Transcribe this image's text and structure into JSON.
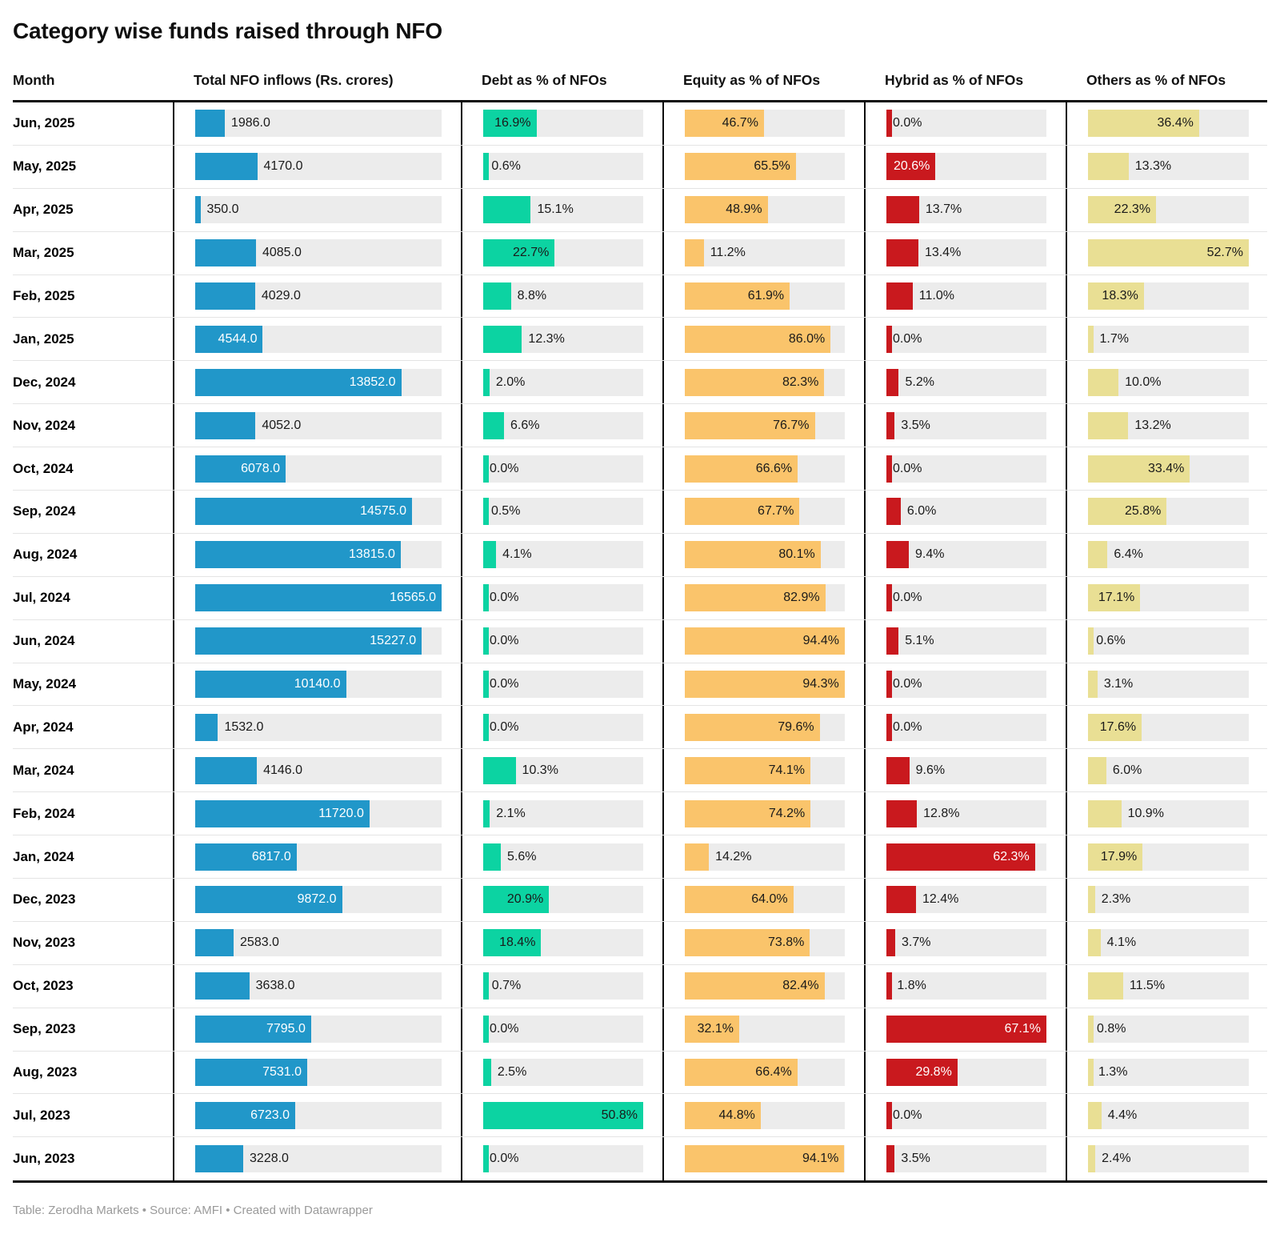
{
  "title": "Category wise funds raised through NFO",
  "footer": "Table: Zerodha Markets • Source: AMFI • Created with Datawrapper",
  "colors": {
    "track": "#ececec",
    "row_divider": "#e4e4e4",
    "table_border": "#0d0d0d",
    "outside_label_text": "#1a1a1a",
    "footer_text": "#9a9a9a"
  },
  "columns": [
    {
      "key": "month",
      "label": "Month"
    },
    {
      "key": "total",
      "label": "Total NFO inflows (Rs. crores)",
      "bar_color": "#2197c9",
      "inside_label_color": "#ffffff",
      "scale_max": 16565.0,
      "unit": ""
    },
    {
      "key": "debt",
      "label": "Debt as % of NFOs",
      "bar_color": "#0cd3a2",
      "inside_label_color": "#1a1a1a",
      "scale_max": 50.8,
      "unit": "%"
    },
    {
      "key": "equity",
      "label": "Equity as % of NFOs",
      "bar_color": "#fac46b",
      "inside_label_color": "#1a1a1a",
      "scale_max": 94.4,
      "unit": "%"
    },
    {
      "key": "hybrid",
      "label": "Hybrid as % of NFOs",
      "bar_color": "#c9191e",
      "inside_label_color": "#ffffff",
      "scale_max": 67.1,
      "unit": "%"
    },
    {
      "key": "others",
      "label": "Others as % of NFOs",
      "bar_color": "#e9df94",
      "inside_label_color": "#1a1a1a",
      "scale_max": 52.7,
      "unit": "%"
    }
  ],
  "chart_data": {
    "type": "table",
    "title": "Category wise funds raised through NFO",
    "months": [
      "Jun, 2025",
      "May, 2025",
      "Apr, 2025",
      "Mar, 2025",
      "Feb, 2025",
      "Jan, 2025",
      "Dec, 2024",
      "Nov, 2024",
      "Oct, 2024",
      "Sep, 2024",
      "Aug, 2024",
      "Jul, 2024",
      "Jun, 2024",
      "May, 2024",
      "Apr, 2024",
      "Mar, 2024",
      "Feb, 2024",
      "Jan, 2024",
      "Dec, 2023",
      "Nov, 2023",
      "Oct, 2023",
      "Sep, 2023",
      "Aug, 2023",
      "Jul, 2023",
      "Jun, 2023"
    ],
    "series": {
      "total": [
        1986.0,
        4170.0,
        350.0,
        4085.0,
        4029.0,
        4544.0,
        13852.0,
        4052.0,
        6078.0,
        14575.0,
        13815.0,
        16565.0,
        15227.0,
        10140.0,
        1532.0,
        4146.0,
        11720.0,
        6817.0,
        9872.0,
        2583.0,
        3638.0,
        7795.0,
        7531.0,
        6723.0,
        3228.0
      ],
      "debt": [
        16.9,
        0.6,
        15.1,
        22.7,
        8.8,
        12.3,
        2.0,
        6.6,
        0.0,
        0.5,
        4.1,
        0.0,
        0.0,
        0.0,
        0.0,
        10.3,
        2.1,
        5.6,
        20.9,
        18.4,
        0.7,
        0.0,
        2.5,
        50.8,
        0.0
      ],
      "equity": [
        46.7,
        65.5,
        48.9,
        11.2,
        61.9,
        86.0,
        82.3,
        76.7,
        66.6,
        67.7,
        80.1,
        82.9,
        94.4,
        94.3,
        79.6,
        74.1,
        74.2,
        14.2,
        64.0,
        73.8,
        82.4,
        32.1,
        66.4,
        44.8,
        94.1
      ],
      "hybrid": [
        0.0,
        20.6,
        13.7,
        13.4,
        11.0,
        0.0,
        5.2,
        3.5,
        0.0,
        6.0,
        9.4,
        0.0,
        5.1,
        0.0,
        0.0,
        9.6,
        12.8,
        62.3,
        12.4,
        3.7,
        1.8,
        67.1,
        29.8,
        0.0,
        3.5
      ],
      "others": [
        36.4,
        13.3,
        22.3,
        52.7,
        18.3,
        1.7,
        10.0,
        13.2,
        33.4,
        25.8,
        6.4,
        17.1,
        0.6,
        3.1,
        17.6,
        6.0,
        10.9,
        17.9,
        2.3,
        4.1,
        11.5,
        0.8,
        1.3,
        4.4,
        2.4
      ]
    },
    "label_inside": {
      "total": [
        false,
        false,
        false,
        false,
        false,
        true,
        true,
        false,
        true,
        true,
        true,
        true,
        true,
        true,
        false,
        false,
        true,
        true,
        true,
        false,
        false,
        true,
        true,
        true,
        false
      ],
      "debt": [
        true,
        false,
        false,
        true,
        false,
        false,
        false,
        false,
        false,
        false,
        false,
        false,
        false,
        false,
        false,
        false,
        false,
        false,
        true,
        true,
        false,
        false,
        false,
        true,
        false
      ],
      "equity": [
        true,
        true,
        true,
        false,
        true,
        true,
        true,
        true,
        true,
        true,
        true,
        true,
        true,
        true,
        true,
        true,
        true,
        false,
        true,
        true,
        true,
        true,
        true,
        true,
        true
      ],
      "hybrid": [
        false,
        true,
        false,
        false,
        false,
        false,
        false,
        false,
        false,
        false,
        false,
        false,
        false,
        false,
        false,
        false,
        false,
        true,
        false,
        false,
        false,
        true,
        true,
        false,
        false
      ],
      "others": [
        true,
        false,
        true,
        true,
        true,
        false,
        false,
        false,
        true,
        true,
        false,
        true,
        false,
        false,
        true,
        false,
        false,
        true,
        false,
        false,
        false,
        false,
        false,
        false,
        false
      ]
    },
    "scale_max": {
      "total": 16565.0,
      "debt": 50.8,
      "equity": 94.4,
      "hybrid": 67.1,
      "others": 52.7
    },
    "value_format": "one_decimal",
    "grid": false,
    "legend": "none"
  }
}
